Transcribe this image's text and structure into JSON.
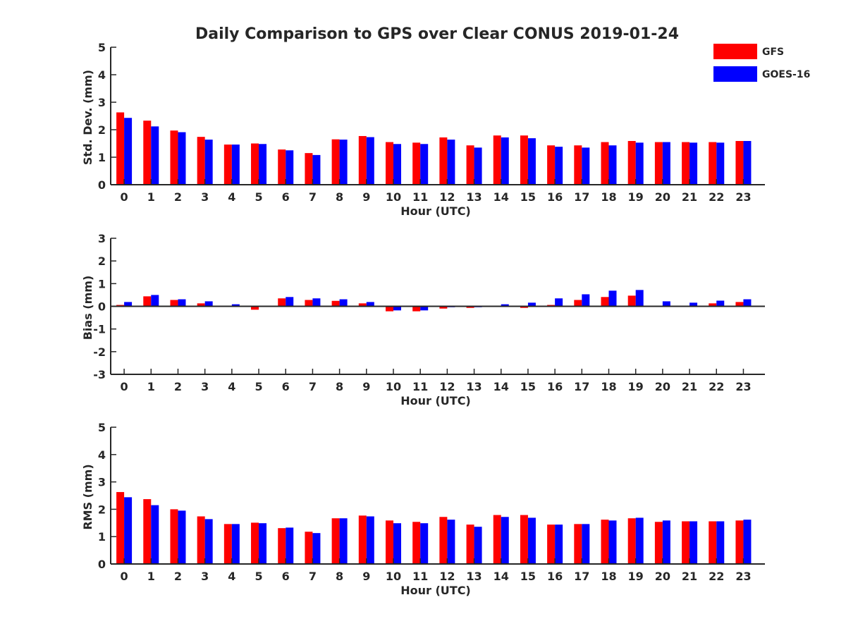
{
  "chart_data": {
    "title": "Daily Comparison to GPS over Clear CONUS 2019-01-24",
    "legend": {
      "placement": "top-right",
      "entries": [
        {
          "name": "GFS",
          "color": "#ff0000"
        },
        {
          "name": "GOES-16",
          "color": "#0000ff"
        }
      ]
    },
    "panels": [
      {
        "type": "bar",
        "xlabel": "Hour (UTC)",
        "ylabel": "Std. Dev. (mm)",
        "ylim": [
          0,
          5
        ],
        "yticks": [
          0,
          1,
          2,
          3,
          4,
          5
        ],
        "categories": [
          "0",
          "1",
          "2",
          "3",
          "4",
          "5",
          "6",
          "7",
          "8",
          "9",
          "10",
          "11",
          "12",
          "13",
          "14",
          "15",
          "16",
          "17",
          "18",
          "19",
          "20",
          "21",
          "22",
          "23"
        ],
        "series": [
          {
            "name": "GFS",
            "color": "#ff0000",
            "values": [
              2.63,
              2.33,
              1.97,
              1.74,
              1.46,
              1.5,
              1.28,
              1.15,
              1.65,
              1.77,
              1.55,
              1.53,
              1.72,
              1.43,
              1.79,
              1.79,
              1.43,
              1.43,
              1.55,
              1.59,
              1.55,
              1.55,
              1.55,
              1.59
            ]
          },
          {
            "name": "GOES-16",
            "color": "#0000ff",
            "values": [
              2.43,
              2.12,
              1.91,
              1.64,
              1.46,
              1.48,
              1.25,
              1.08,
              1.64,
              1.73,
              1.48,
              1.48,
              1.64,
              1.35,
              1.72,
              1.69,
              1.38,
              1.35,
              1.43,
              1.53,
              1.55,
              1.53,
              1.53,
              1.59
            ]
          }
        ]
      },
      {
        "type": "bar",
        "xlabel": "Hour (UTC)",
        "ylabel": "Bias (mm)",
        "ylim": [
          -3,
          3
        ],
        "yticks": [
          -3,
          -2,
          -1,
          0,
          1,
          2,
          3
        ],
        "categories": [
          "0",
          "1",
          "2",
          "3",
          "4",
          "5",
          "6",
          "7",
          "8",
          "9",
          "10",
          "11",
          "12",
          "13",
          "14",
          "15",
          "16",
          "17",
          "18",
          "19",
          "20",
          "21",
          "22",
          "23"
        ],
        "series": [
          {
            "name": "GFS",
            "color": "#ff0000",
            "values": [
              0.06,
              0.44,
              0.28,
              0.13,
              0.0,
              -0.15,
              0.35,
              0.28,
              0.24,
              0.13,
              -0.22,
              -0.22,
              -0.1,
              -0.07,
              0.0,
              -0.07,
              0.06,
              0.28,
              0.41,
              0.47,
              0.0,
              0.0,
              0.13,
              0.19
            ]
          },
          {
            "name": "GOES-16",
            "color": "#0000ff",
            "values": [
              0.19,
              0.5,
              0.31,
              0.22,
              0.09,
              0.0,
              0.41,
              0.35,
              0.31,
              0.19,
              -0.18,
              -0.18,
              -0.04,
              -0.04,
              0.09,
              0.16,
              0.35,
              0.53,
              0.69,
              0.72,
              0.22,
              0.16,
              0.25,
              0.31
            ]
          }
        ]
      },
      {
        "type": "bar",
        "xlabel": "Hour (UTC)",
        "ylabel": "RMS (mm)",
        "ylim": [
          0,
          5
        ],
        "yticks": [
          0,
          1,
          2,
          3,
          4,
          5
        ],
        "categories": [
          "0",
          "1",
          "2",
          "3",
          "4",
          "5",
          "6",
          "7",
          "8",
          "9",
          "10",
          "11",
          "12",
          "13",
          "14",
          "15",
          "16",
          "17",
          "18",
          "19",
          "20",
          "21",
          "22",
          "23"
        ],
        "series": [
          {
            "name": "GFS",
            "color": "#ff0000",
            "values": [
              2.63,
              2.37,
              2.0,
              1.74,
              1.46,
              1.51,
              1.31,
              1.18,
              1.67,
              1.77,
              1.59,
              1.54,
              1.72,
              1.44,
              1.79,
              1.79,
              1.44,
              1.46,
              1.62,
              1.67,
              1.54,
              1.56,
              1.56,
              1.59
            ]
          },
          {
            "name": "GOES-16",
            "color": "#0000ff",
            "values": [
              2.44,
              2.15,
              1.95,
              1.64,
              1.46,
              1.49,
              1.33,
              1.13,
              1.67,
              1.74,
              1.49,
              1.49,
              1.62,
              1.36,
              1.72,
              1.69,
              1.44,
              1.46,
              1.59,
              1.69,
              1.59,
              1.56,
              1.56,
              1.62
            ]
          }
        ]
      }
    ]
  }
}
